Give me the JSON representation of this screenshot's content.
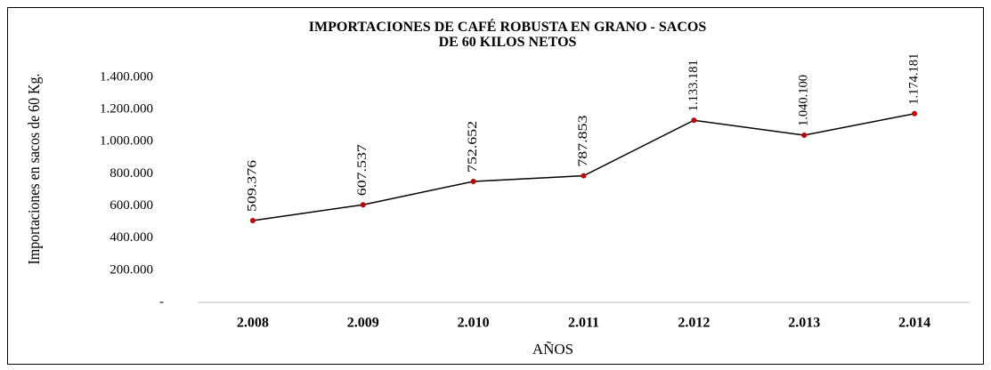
{
  "chart_data": {
    "type": "line",
    "title": "IMPORTACIONES DE CAFÉ ROBUSTA EN GRANO - SACOS DE 60 KILOS NETOS",
    "x_label": "AÑOS",
    "y_label": "Importaciones en sacos de 60 Kg.",
    "categories": [
      "2.008",
      "2.009",
      "2.010",
      "2.011",
      "2.012",
      "2.013",
      "2.014"
    ],
    "values": [
      509376,
      607537,
      752652,
      787853,
      1133181,
      1040100,
      1174181
    ],
    "value_labels": [
      "509.376",
      "607.537",
      "752.652",
      "787.853",
      "1.133.181",
      "1.040.100",
      "1.174.181"
    ],
    "color": "#000000",
    "marker_color": "#c00000",
    "ylim": [
      0,
      1400000
    ],
    "yticks": [
      {
        "value": 0,
        "label": "-"
      },
      {
        "value": 200000,
        "label": "200.000"
      },
      {
        "value": 400000,
        "label": "400.000"
      },
      {
        "value": 600000,
        "label": "600.000"
      },
      {
        "value": 800000,
        "label": "800.000"
      },
      {
        "value": 1000000,
        "label": "1.000.000"
      },
      {
        "value": 1200000,
        "label": "1.200.000"
      },
      {
        "value": 1400000,
        "label": "1.400.000"
      }
    ],
    "grid": false
  }
}
